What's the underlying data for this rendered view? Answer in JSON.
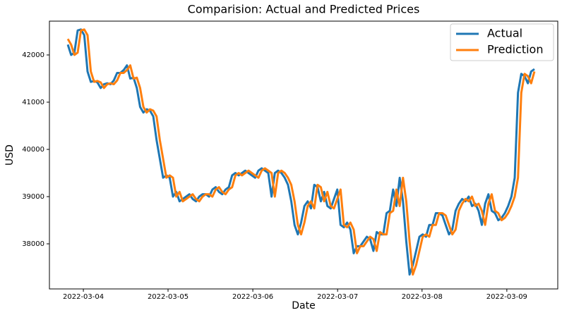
{
  "chart_data": {
    "type": "line",
    "title": "Comparision: Actual and Predicted Prices",
    "xlabel": "Date",
    "ylabel": "USD",
    "x": [
      0,
      1,
      2,
      3,
      4,
      5,
      6,
      7,
      8,
      9,
      10,
      11,
      12,
      13,
      14,
      15,
      16,
      17,
      18,
      19,
      20,
      21,
      22,
      23,
      24,
      25,
      26,
      27,
      28,
      29,
      30,
      31,
      32,
      33,
      34,
      35,
      36,
      37,
      38,
      39,
      40,
      41,
      42,
      43,
      44,
      45,
      46,
      47,
      48,
      49,
      50,
      51,
      52,
      53,
      54,
      55,
      56,
      57,
      58,
      59,
      60,
      61,
      62,
      63,
      64,
      65,
      66,
      67,
      68,
      69,
      70,
      71,
      72,
      73,
      74,
      75,
      76,
      77,
      78,
      79,
      80,
      81,
      82,
      83,
      84,
      85,
      86,
      87,
      88,
      89,
      90,
      91,
      92,
      93,
      94,
      95,
      96,
      97,
      98,
      99,
      100,
      101,
      102,
      103,
      104,
      105,
      106,
      107,
      108,
      109,
      110,
      111,
      112,
      113,
      114,
      115,
      116,
      117,
      118,
      119,
      120,
      121,
      122,
      123,
      124,
      125,
      126,
      127,
      128,
      129,
      130,
      131,
      132,
      133,
      134,
      135,
      136,
      137,
      138,
      139,
      140,
      141,
      142
    ],
    "series": [
      {
        "name": "Actual",
        "color": "#1f77b4",
        "values": [
          42220,
          42000,
          42050,
          42520,
          42540,
          42420,
          41650,
          41430,
          41450,
          41420,
          41300,
          41380,
          41400,
          41380,
          41460,
          41620,
          41620,
          41680,
          41780,
          41500,
          41520,
          41300,
          40900,
          40780,
          40850,
          40820,
          40700,
          40200,
          39800,
          39400,
          39450,
          39400,
          39000,
          39100,
          38900,
          38950,
          39000,
          39050,
          38950,
          38900,
          39000,
          39050,
          39050,
          39000,
          39150,
          39200,
          39100,
          39050,
          39150,
          39200,
          39450,
          39500,
          39450,
          39500,
          39550,
          39500,
          39450,
          39400,
          39550,
          39600,
          39550,
          39500,
          39000,
          39500,
          39550,
          39500,
          39400,
          39250,
          38900,
          38400,
          38200,
          38450,
          38800,
          38900,
          38750,
          39250,
          39200,
          38900,
          39100,
          38800,
          38750,
          38950,
          39150,
          38400,
          38350,
          38450,
          38300,
          37800,
          37950,
          37950,
          38050,
          38150,
          38100,
          37850,
          38250,
          38200,
          38200,
          38650,
          38700,
          39150,
          38800,
          39400,
          38900,
          38050,
          37350,
          37550,
          37850,
          38150,
          38200,
          38150,
          38400,
          38400,
          38650,
          38650,
          38600,
          38400,
          38200,
          38300,
          38700,
          38850,
          38950,
          38900,
          39000,
          38800,
          38850,
          38700,
          38400,
          38850,
          39050,
          38700,
          38650,
          38500,
          38550,
          38650,
          38800,
          39000,
          39400,
          41200,
          41600,
          41550,
          41400,
          41650,
          41700
        ]
      },
      {
        "name": "Prediction",
        "color": "#ff7f0e",
        "values": [
          42340,
          42220,
          42000,
          42050,
          42520,
          42540,
          42420,
          41650,
          41430,
          41450,
          41420,
          41300,
          41380,
          41400,
          41380,
          41460,
          41620,
          41620,
          41680,
          41780,
          41500,
          41520,
          41300,
          40900,
          40780,
          40850,
          40820,
          40700,
          40200,
          39800,
          39400,
          39450,
          39400,
          39000,
          39100,
          38900,
          38950,
          39000,
          39050,
          38950,
          38900,
          39000,
          39050,
          39050,
          39000,
          39150,
          39200,
          39100,
          39050,
          39150,
          39200,
          39450,
          39500,
          39450,
          39500,
          39550,
          39500,
          39450,
          39400,
          39550,
          39600,
          39550,
          39500,
          39000,
          39500,
          39550,
          39500,
          39400,
          39250,
          38900,
          38400,
          38200,
          38450,
          38800,
          38900,
          38750,
          39250,
          39200,
          38900,
          39100,
          38800,
          38750,
          38950,
          39150,
          38400,
          38350,
          38450,
          38300,
          37800,
          37950,
          37950,
          38050,
          38150,
          38100,
          37850,
          38250,
          38200,
          38200,
          38650,
          38700,
          39150,
          38800,
          39400,
          38900,
          38050,
          37350,
          37550,
          37850,
          38150,
          38200,
          38150,
          38400,
          38400,
          38650,
          38650,
          38600,
          38400,
          38200,
          38300,
          38700,
          38850,
          38950,
          38900,
          39000,
          38800,
          38850,
          38700,
          38400,
          38850,
          39050,
          38700,
          38650,
          38500,
          38550,
          38650,
          38800,
          39000,
          39400,
          41200,
          41600,
          41550,
          41400,
          41650
        ]
      }
    ],
    "xlim": [
      -5.6,
      149.1
    ],
    "xticks": [
      {
        "value": 4.73,
        "label": "2022-03-04"
      },
      {
        "value": 30.5,
        "label": "2022-03-05"
      },
      {
        "value": 56.3,
        "label": "2022-03-06"
      },
      {
        "value": 82.1,
        "label": "2022-03-07"
      },
      {
        "value": 107.8,
        "label": "2022-03-08"
      },
      {
        "value": 133.6,
        "label": "2022-03-09"
      }
    ],
    "ylim": [
      37045,
      42716
    ],
    "yticks": [
      38000,
      39000,
      40000,
      41000,
      42000
    ],
    "grid": false,
    "legend": "upper right"
  }
}
